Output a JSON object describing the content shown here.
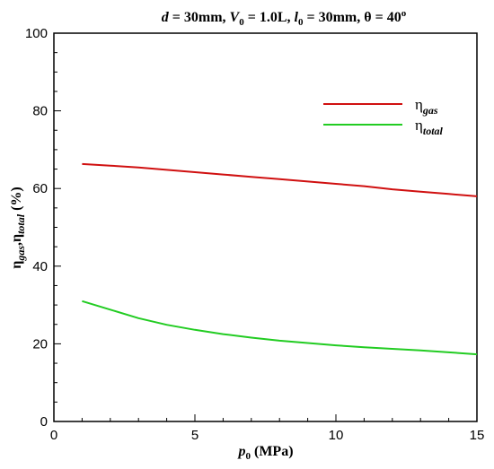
{
  "chart_data": {
    "type": "line",
    "title": {
      "d_sym": "d",
      "d_val": " = 30mm, ",
      "v_sym": "V",
      "v_sub": "0",
      "v_val": " = 1.0L, ",
      "l_sym": "l",
      "l_sub": "0",
      "l_val": " = 30mm, ",
      "theta": "θ = 40",
      "theta_sup": "o"
    },
    "xlabel": {
      "sym": "p",
      "sub": "0",
      "unit": " (MPa)"
    },
    "ylabel": {
      "sym1": "η",
      "sub1": "gas",
      "sep": ",",
      "sym2": "η",
      "sub2": "total",
      "unit": " (%)"
    },
    "xlim": [
      0,
      15
    ],
    "ylim": [
      0,
      100
    ],
    "xticks": [
      0,
      5,
      10,
      15
    ],
    "yticks": [
      0,
      20,
      40,
      60,
      80,
      100
    ],
    "x": [
      1,
      2,
      3,
      4,
      5,
      6,
      7,
      8,
      9,
      10,
      11,
      12,
      13,
      14,
      15
    ],
    "series": [
      {
        "sym": "η",
        "sub": "gas",
        "color": "#d01010",
        "values": [
          66.3,
          65.9,
          65.4,
          64.8,
          64.2,
          63.6,
          63.0,
          62.4,
          61.8,
          61.2,
          60.6,
          59.8,
          59.2,
          58.6,
          58.0
        ]
      },
      {
        "sym": "η",
        "sub": "total",
        "color": "#22cc22",
        "values": [
          31.0,
          28.8,
          26.6,
          24.9,
          23.6,
          22.5,
          21.6,
          20.8,
          20.2,
          19.6,
          19.1,
          18.7,
          18.3,
          17.8,
          17.3
        ]
      }
    ],
    "legend_position": "top-right",
    "grid": false
  }
}
